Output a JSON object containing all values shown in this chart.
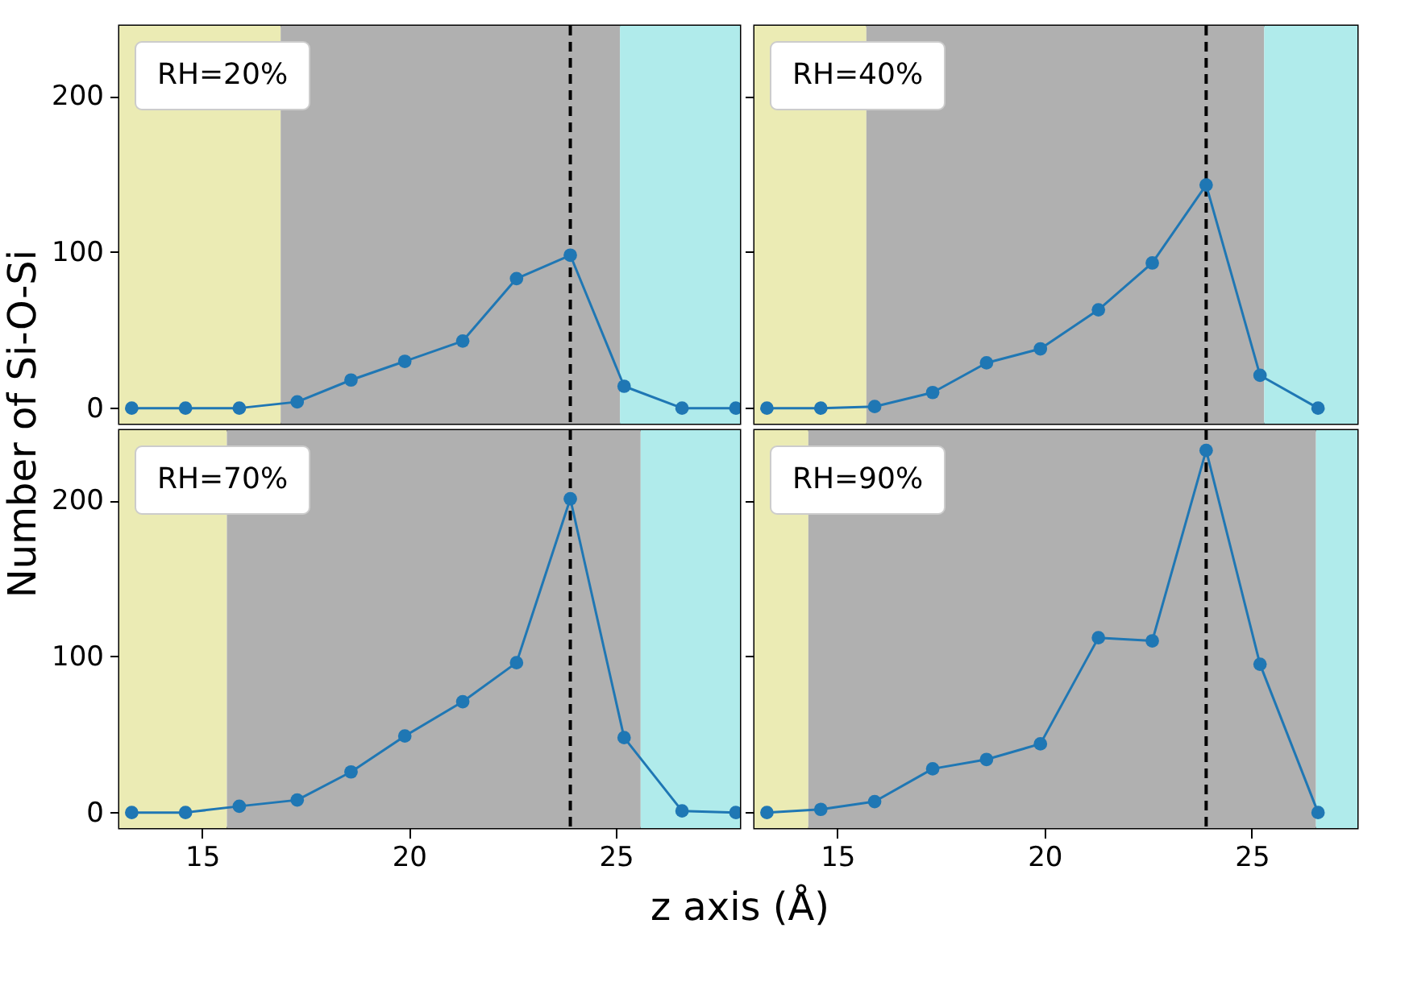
{
  "chart_data": [
    {
      "type": "line",
      "x": [
        13.3,
        14.6,
        15.9,
        17.3,
        18.6,
        19.9,
        21.3,
        22.6,
        23.9,
        25.2,
        26.6,
        27.9
      ],
      "values": [
        0,
        0,
        0,
        4,
        18,
        30,
        43,
        83,
        98,
        14,
        0,
        0
      ],
      "color": "#1f77b4",
      "marker": "circle",
      "xlim": [
        13,
        28
      ],
      "ylim": [
        -10,
        245
      ],
      "xticks": [
        15,
        20,
        25
      ],
      "yticks": [
        0,
        100,
        200
      ],
      "tick_labels": "y",
      "annotations": [
        "RH=20%"
      ],
      "bands": [
        {
          "axis": "x",
          "from": 13,
          "to": 16.9,
          "color": "#ebebb4"
        },
        {
          "axis": "x",
          "from": 16.9,
          "to": 25.1,
          "color": "#b0b0b0"
        },
        {
          "axis": "x",
          "from": 25.1,
          "to": 28,
          "color": "#b0ebeb"
        }
      ],
      "ref_lines": [
        {
          "axis": "x",
          "value": 23.9,
          "color": "#000000",
          "line_style": "dashed"
        }
      ]
    },
    {
      "type": "line",
      "x": [
        13.3,
        14.6,
        15.9,
        17.3,
        18.6,
        19.9,
        21.3,
        22.6,
        23.9,
        25.2,
        26.6
      ],
      "values": [
        0,
        0,
        1,
        10,
        29,
        38,
        63,
        93,
        143,
        21,
        0
      ],
      "color": "#1f77b4",
      "marker": "circle",
      "xlim": [
        13,
        27.55
      ],
      "ylim": [
        -10,
        245
      ],
      "xticks": [
        15,
        20,
        25
      ],
      "yticks": [
        0,
        100,
        200
      ],
      "tick_labels": false,
      "annotations": [
        "RH=40%"
      ],
      "bands": [
        {
          "axis": "x",
          "from": 13,
          "to": 15.7,
          "color": "#ebebb4"
        },
        {
          "axis": "x",
          "from": 15.7,
          "to": 25.3,
          "color": "#b0b0b0"
        },
        {
          "axis": "x",
          "from": 25.3,
          "to": 27.55,
          "color": "#b0ebeb"
        }
      ],
      "ref_lines": [
        {
          "axis": "x",
          "value": 23.9,
          "color": "#000000",
          "line_style": "dashed"
        }
      ]
    },
    {
      "type": "line",
      "x": [
        13.3,
        14.6,
        15.9,
        17.3,
        18.6,
        19.9,
        21.3,
        22.6,
        23.9,
        25.2,
        26.6,
        27.9
      ],
      "values": [
        0,
        0,
        4,
        8,
        26,
        49,
        71,
        96,
        201,
        48,
        1,
        0
      ],
      "color": "#1f77b4",
      "marker": "circle",
      "xlim": [
        13,
        28
      ],
      "ylim": [
        -10,
        245
      ],
      "xticks": [
        15,
        20,
        25
      ],
      "yticks": [
        0,
        100,
        200
      ],
      "xlabel": "z axis (Å)",
      "ylabel": "Number of Si-O-Si",
      "annotations": [
        "RH=70%"
      ],
      "bands": [
        {
          "axis": "x",
          "from": 13,
          "to": 15.6,
          "color": "#ebebb4"
        },
        {
          "axis": "x",
          "from": 15.6,
          "to": 25.6,
          "color": "#b0b0b0"
        },
        {
          "axis": "x",
          "from": 25.6,
          "to": 28,
          "color": "#b0ebeb"
        }
      ],
      "ref_lines": [
        {
          "axis": "x",
          "value": 23.9,
          "color": "#000000",
          "line_style": "dashed"
        }
      ]
    },
    {
      "type": "line",
      "x": [
        13.3,
        14.6,
        15.9,
        17.3,
        18.6,
        19.9,
        21.3,
        22.6,
        23.9,
        25.2,
        26.6
      ],
      "values": [
        0,
        2,
        7,
        28,
        34,
        44,
        112,
        110,
        232,
        95,
        0
      ],
      "color": "#1f77b4",
      "marker": "circle",
      "xlim": [
        13,
        27.55
      ],
      "ylim": [
        -10,
        245
      ],
      "xticks": [
        15,
        20,
        25
      ],
      "yticks": [
        0,
        100,
        200
      ],
      "tick_labels": "x",
      "annotations": [
        "RH=90%"
      ],
      "bands": [
        {
          "axis": "x",
          "from": 13,
          "to": 14.3,
          "color": "#ebebb4"
        },
        {
          "axis": "x",
          "from": 14.3,
          "to": 26.55,
          "color": "#b0b0b0"
        },
        {
          "axis": "x",
          "from": 26.55,
          "to": 27.55,
          "color": "#b0ebeb"
        }
      ],
      "ref_lines": [
        {
          "axis": "x",
          "value": 23.9,
          "color": "#000000",
          "line_style": "dashed"
        }
      ]
    }
  ]
}
